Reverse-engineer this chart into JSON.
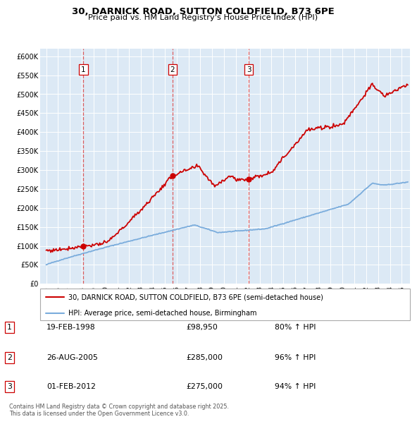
{
  "title": "30, DARNICK ROAD, SUTTON COLDFIELD, B73 6PE",
  "subtitle": "Price paid vs. HM Land Registry's House Price Index (HPI)",
  "background_color": "#ffffff",
  "plot_bg_color": "#dce9f5",
  "legend_line1": "30, DARNICK ROAD, SUTTON COLDFIELD, B73 6PE (semi-detached house)",
  "legend_line2": "HPI: Average price, semi-detached house, Birmingham",
  "footer": "Contains HM Land Registry data © Crown copyright and database right 2025.\nThis data is licensed under the Open Government Licence v3.0.",
  "sale_markers": [
    {
      "num": 1,
      "date": "19-FEB-1998",
      "price": 98950,
      "pct": "80% ↑ HPI",
      "x": 1998.13
    },
    {
      "num": 2,
      "date": "26-AUG-2005",
      "price": 285000,
      "pct": "96% ↑ HPI",
      "x": 2005.65
    },
    {
      "num": 3,
      "date": "01-FEB-2012",
      "price": 275000,
      "pct": "94% ↑ HPI",
      "x": 2012.08
    }
  ],
  "ylim": [
    0,
    620000
  ],
  "xlim": [
    1994.5,
    2025.7
  ],
  "yticks": [
    0,
    50000,
    100000,
    150000,
    200000,
    250000,
    300000,
    350000,
    400000,
    450000,
    500000,
    550000,
    600000
  ],
  "ytick_labels": [
    "£0",
    "£50K",
    "£100K",
    "£150K",
    "£200K",
    "£250K",
    "£300K",
    "£350K",
    "£400K",
    "£450K",
    "£500K",
    "£550K",
    "£600K"
  ],
  "xtick_years": [
    1995,
    1996,
    1997,
    1998,
    1999,
    2000,
    2001,
    2002,
    2003,
    2004,
    2005,
    2006,
    2007,
    2008,
    2009,
    2010,
    2011,
    2012,
    2013,
    2014,
    2015,
    2016,
    2017,
    2018,
    2019,
    2020,
    2021,
    2022,
    2023,
    2024,
    2025
  ],
  "red_color": "#cc0000",
  "blue_color": "#7aacdc",
  "dashed_color": "#dd4444",
  "sale_dot_color": "#cc0000"
}
